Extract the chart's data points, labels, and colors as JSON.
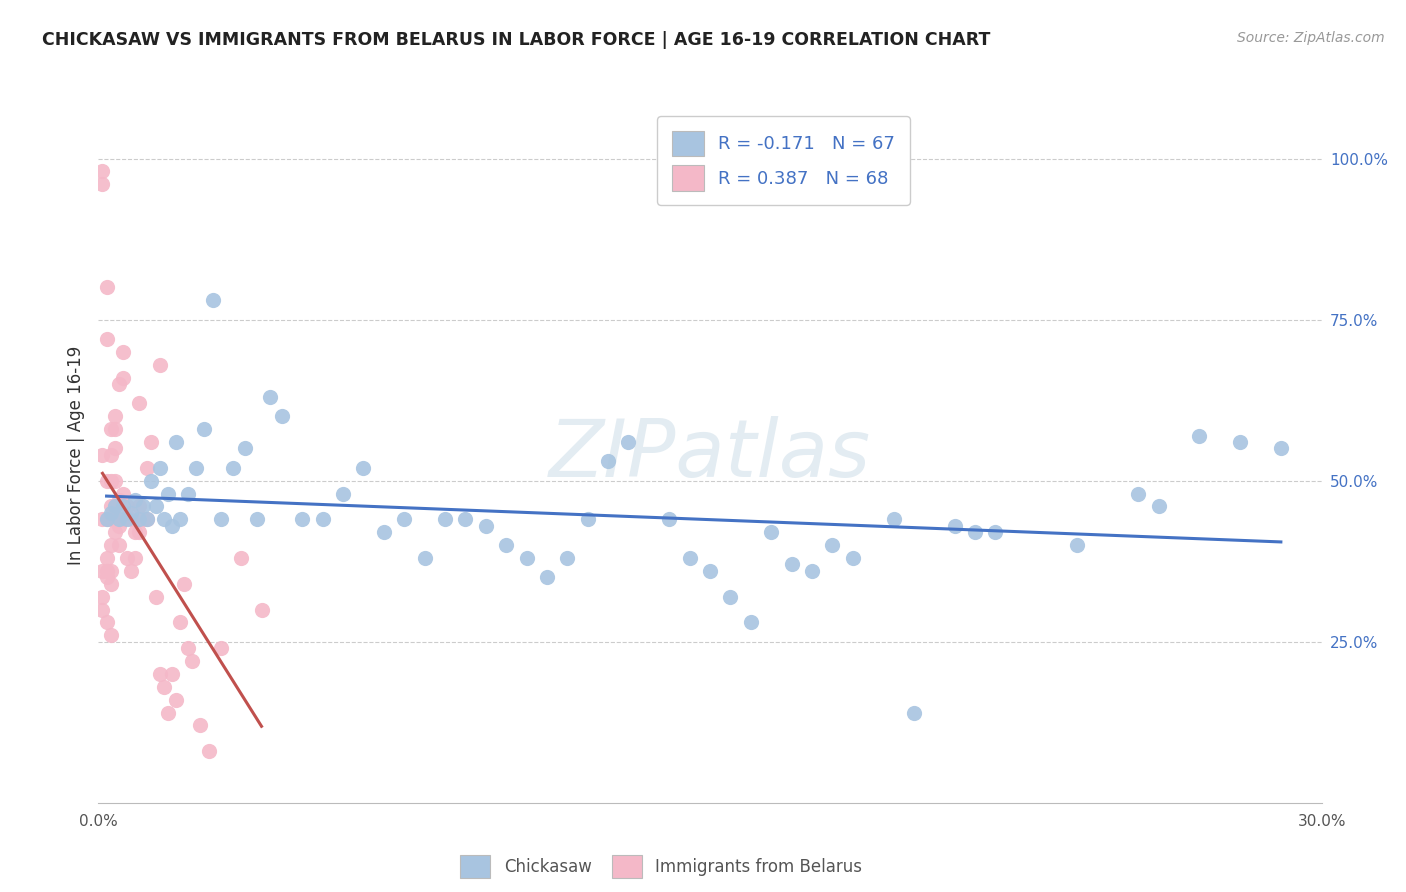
{
  "title": "CHICKASAW VS IMMIGRANTS FROM BELARUS IN LABOR FORCE | AGE 16-19 CORRELATION CHART",
  "source": "Source: ZipAtlas.com",
  "ylabel": "In Labor Force | Age 16-19",
  "xlim": [
    0.0,
    0.3
  ],
  "ylim": [
    0.0,
    1.08
  ],
  "legend_r1": "R = -0.171",
  "legend_n1": "N = 67",
  "legend_r2": "R = 0.387",
  "legend_n2": "N = 68",
  "watermark": "ZIPatlas",
  "chickasaw_color": "#a8c4e0",
  "belarus_color": "#f4b8c8",
  "line1_color": "#4472c4",
  "line2_color": "#c0504d",
  "chickasaw_x": [
    0.002,
    0.003,
    0.004,
    0.005,
    0.006,
    0.007,
    0.008,
    0.009,
    0.01,
    0.011,
    0.012,
    0.013,
    0.014,
    0.015,
    0.016,
    0.017,
    0.018,
    0.019,
    0.02,
    0.022,
    0.024,
    0.026,
    0.028,
    0.03,
    0.033,
    0.036,
    0.039,
    0.042,
    0.045,
    0.05,
    0.055,
    0.06,
    0.065,
    0.07,
    0.075,
    0.08,
    0.085,
    0.09,
    0.095,
    0.1,
    0.105,
    0.11,
    0.115,
    0.12,
    0.125,
    0.13,
    0.14,
    0.145,
    0.15,
    0.155,
    0.16,
    0.165,
    0.17,
    0.175,
    0.18,
    0.185,
    0.195,
    0.2,
    0.21,
    0.215,
    0.22,
    0.24,
    0.255,
    0.26,
    0.27,
    0.28,
    0.29
  ],
  "chickasaw_y": [
    0.44,
    0.45,
    0.46,
    0.44,
    0.46,
    0.44,
    0.45,
    0.47,
    0.44,
    0.46,
    0.44,
    0.5,
    0.46,
    0.52,
    0.44,
    0.48,
    0.43,
    0.56,
    0.44,
    0.48,
    0.52,
    0.58,
    0.78,
    0.44,
    0.52,
    0.55,
    0.44,
    0.63,
    0.6,
    0.44,
    0.44,
    0.48,
    0.52,
    0.42,
    0.44,
    0.38,
    0.44,
    0.44,
    0.43,
    0.4,
    0.38,
    0.35,
    0.38,
    0.44,
    0.53,
    0.56,
    0.44,
    0.38,
    0.36,
    0.32,
    0.28,
    0.42,
    0.37,
    0.36,
    0.4,
    0.38,
    0.44,
    0.14,
    0.43,
    0.42,
    0.42,
    0.4,
    0.48,
    0.46,
    0.57,
    0.56,
    0.55
  ],
  "belarus_x": [
    0.001,
    0.001,
    0.001,
    0.001,
    0.002,
    0.002,
    0.002,
    0.002,
    0.002,
    0.003,
    0.003,
    0.003,
    0.003,
    0.003,
    0.003,
    0.004,
    0.004,
    0.004,
    0.004,
    0.004,
    0.005,
    0.005,
    0.005,
    0.005,
    0.006,
    0.006,
    0.006,
    0.007,
    0.007,
    0.008,
    0.008,
    0.009,
    0.009,
    0.01,
    0.01,
    0.011,
    0.012,
    0.012,
    0.013,
    0.014,
    0.015,
    0.016,
    0.017,
    0.018,
    0.019,
    0.02,
    0.021,
    0.022,
    0.023,
    0.025,
    0.027,
    0.03,
    0.035,
    0.04,
    0.001,
    0.001,
    0.002,
    0.002,
    0.003,
    0.003,
    0.004,
    0.006,
    0.01,
    0.015,
    0.001,
    0.002,
    0.003,
    0.004
  ],
  "belarus_y": [
    0.96,
    0.98,
    0.44,
    0.32,
    0.8,
    0.72,
    0.44,
    0.38,
    0.35,
    0.58,
    0.54,
    0.5,
    0.46,
    0.44,
    0.36,
    0.6,
    0.55,
    0.5,
    0.46,
    0.42,
    0.65,
    0.47,
    0.43,
    0.4,
    0.48,
    0.44,
    0.66,
    0.46,
    0.38,
    0.44,
    0.36,
    0.42,
    0.38,
    0.42,
    0.46,
    0.44,
    0.52,
    0.44,
    0.56,
    0.32,
    0.2,
    0.18,
    0.14,
    0.2,
    0.16,
    0.28,
    0.34,
    0.24,
    0.22,
    0.12,
    0.08,
    0.24,
    0.38,
    0.3,
    0.36,
    0.3,
    0.36,
    0.28,
    0.34,
    0.26,
    0.44,
    0.7,
    0.62,
    0.68,
    0.54,
    0.5,
    0.4,
    0.58
  ]
}
